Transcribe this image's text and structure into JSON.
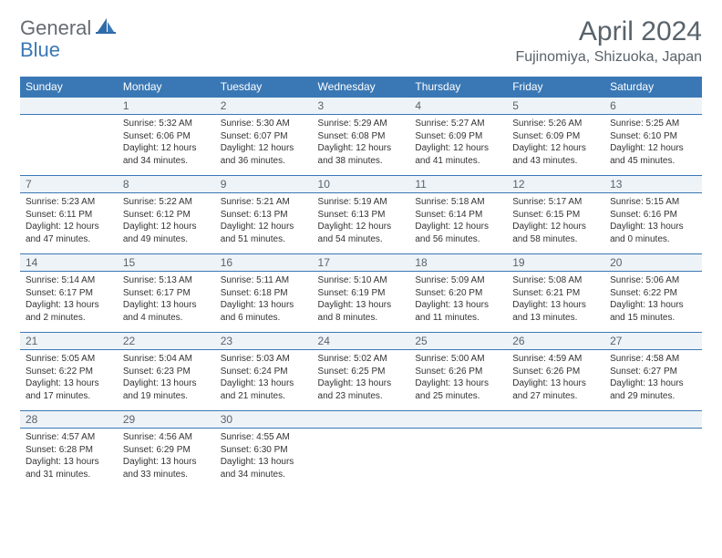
{
  "brand": {
    "general": "General",
    "blue": "Blue"
  },
  "title": "April 2024",
  "location": "Fujinomiya, Shizuoka, Japan",
  "colors": {
    "header_bg": "#3a78b5",
    "header_text": "#ffffff",
    "daynum_bg": "#eef3f8",
    "border": "#3a78b5",
    "body_text": "#333333",
    "title_text": "#59636b"
  },
  "day_names": [
    "Sunday",
    "Monday",
    "Tuesday",
    "Wednesday",
    "Thursday",
    "Friday",
    "Saturday"
  ],
  "weeks": [
    [
      {
        "num": "",
        "sunrise": "",
        "sunset": "",
        "daylight": ""
      },
      {
        "num": "1",
        "sunrise": "Sunrise: 5:32 AM",
        "sunset": "Sunset: 6:06 PM",
        "daylight": "Daylight: 12 hours and 34 minutes."
      },
      {
        "num": "2",
        "sunrise": "Sunrise: 5:30 AM",
        "sunset": "Sunset: 6:07 PM",
        "daylight": "Daylight: 12 hours and 36 minutes."
      },
      {
        "num": "3",
        "sunrise": "Sunrise: 5:29 AM",
        "sunset": "Sunset: 6:08 PM",
        "daylight": "Daylight: 12 hours and 38 minutes."
      },
      {
        "num": "4",
        "sunrise": "Sunrise: 5:27 AM",
        "sunset": "Sunset: 6:09 PM",
        "daylight": "Daylight: 12 hours and 41 minutes."
      },
      {
        "num": "5",
        "sunrise": "Sunrise: 5:26 AM",
        "sunset": "Sunset: 6:09 PM",
        "daylight": "Daylight: 12 hours and 43 minutes."
      },
      {
        "num": "6",
        "sunrise": "Sunrise: 5:25 AM",
        "sunset": "Sunset: 6:10 PM",
        "daylight": "Daylight: 12 hours and 45 minutes."
      }
    ],
    [
      {
        "num": "7",
        "sunrise": "Sunrise: 5:23 AM",
        "sunset": "Sunset: 6:11 PM",
        "daylight": "Daylight: 12 hours and 47 minutes."
      },
      {
        "num": "8",
        "sunrise": "Sunrise: 5:22 AM",
        "sunset": "Sunset: 6:12 PM",
        "daylight": "Daylight: 12 hours and 49 minutes."
      },
      {
        "num": "9",
        "sunrise": "Sunrise: 5:21 AM",
        "sunset": "Sunset: 6:13 PM",
        "daylight": "Daylight: 12 hours and 51 minutes."
      },
      {
        "num": "10",
        "sunrise": "Sunrise: 5:19 AM",
        "sunset": "Sunset: 6:13 PM",
        "daylight": "Daylight: 12 hours and 54 minutes."
      },
      {
        "num": "11",
        "sunrise": "Sunrise: 5:18 AM",
        "sunset": "Sunset: 6:14 PM",
        "daylight": "Daylight: 12 hours and 56 minutes."
      },
      {
        "num": "12",
        "sunrise": "Sunrise: 5:17 AM",
        "sunset": "Sunset: 6:15 PM",
        "daylight": "Daylight: 12 hours and 58 minutes."
      },
      {
        "num": "13",
        "sunrise": "Sunrise: 5:15 AM",
        "sunset": "Sunset: 6:16 PM",
        "daylight": "Daylight: 13 hours and 0 minutes."
      }
    ],
    [
      {
        "num": "14",
        "sunrise": "Sunrise: 5:14 AM",
        "sunset": "Sunset: 6:17 PM",
        "daylight": "Daylight: 13 hours and 2 minutes."
      },
      {
        "num": "15",
        "sunrise": "Sunrise: 5:13 AM",
        "sunset": "Sunset: 6:17 PM",
        "daylight": "Daylight: 13 hours and 4 minutes."
      },
      {
        "num": "16",
        "sunrise": "Sunrise: 5:11 AM",
        "sunset": "Sunset: 6:18 PM",
        "daylight": "Daylight: 13 hours and 6 minutes."
      },
      {
        "num": "17",
        "sunrise": "Sunrise: 5:10 AM",
        "sunset": "Sunset: 6:19 PM",
        "daylight": "Daylight: 13 hours and 8 minutes."
      },
      {
        "num": "18",
        "sunrise": "Sunrise: 5:09 AM",
        "sunset": "Sunset: 6:20 PM",
        "daylight": "Daylight: 13 hours and 11 minutes."
      },
      {
        "num": "19",
        "sunrise": "Sunrise: 5:08 AM",
        "sunset": "Sunset: 6:21 PM",
        "daylight": "Daylight: 13 hours and 13 minutes."
      },
      {
        "num": "20",
        "sunrise": "Sunrise: 5:06 AM",
        "sunset": "Sunset: 6:22 PM",
        "daylight": "Daylight: 13 hours and 15 minutes."
      }
    ],
    [
      {
        "num": "21",
        "sunrise": "Sunrise: 5:05 AM",
        "sunset": "Sunset: 6:22 PM",
        "daylight": "Daylight: 13 hours and 17 minutes."
      },
      {
        "num": "22",
        "sunrise": "Sunrise: 5:04 AM",
        "sunset": "Sunset: 6:23 PM",
        "daylight": "Daylight: 13 hours and 19 minutes."
      },
      {
        "num": "23",
        "sunrise": "Sunrise: 5:03 AM",
        "sunset": "Sunset: 6:24 PM",
        "daylight": "Daylight: 13 hours and 21 minutes."
      },
      {
        "num": "24",
        "sunrise": "Sunrise: 5:02 AM",
        "sunset": "Sunset: 6:25 PM",
        "daylight": "Daylight: 13 hours and 23 minutes."
      },
      {
        "num": "25",
        "sunrise": "Sunrise: 5:00 AM",
        "sunset": "Sunset: 6:26 PM",
        "daylight": "Daylight: 13 hours and 25 minutes."
      },
      {
        "num": "26",
        "sunrise": "Sunrise: 4:59 AM",
        "sunset": "Sunset: 6:26 PM",
        "daylight": "Daylight: 13 hours and 27 minutes."
      },
      {
        "num": "27",
        "sunrise": "Sunrise: 4:58 AM",
        "sunset": "Sunset: 6:27 PM",
        "daylight": "Daylight: 13 hours and 29 minutes."
      }
    ],
    [
      {
        "num": "28",
        "sunrise": "Sunrise: 4:57 AM",
        "sunset": "Sunset: 6:28 PM",
        "daylight": "Daylight: 13 hours and 31 minutes."
      },
      {
        "num": "29",
        "sunrise": "Sunrise: 4:56 AM",
        "sunset": "Sunset: 6:29 PM",
        "daylight": "Daylight: 13 hours and 33 minutes."
      },
      {
        "num": "30",
        "sunrise": "Sunrise: 4:55 AM",
        "sunset": "Sunset: 6:30 PM",
        "daylight": "Daylight: 13 hours and 34 minutes."
      },
      {
        "num": "",
        "sunrise": "",
        "sunset": "",
        "daylight": ""
      },
      {
        "num": "",
        "sunrise": "",
        "sunset": "",
        "daylight": ""
      },
      {
        "num": "",
        "sunrise": "",
        "sunset": "",
        "daylight": ""
      },
      {
        "num": "",
        "sunrise": "",
        "sunset": "",
        "daylight": ""
      }
    ]
  ]
}
